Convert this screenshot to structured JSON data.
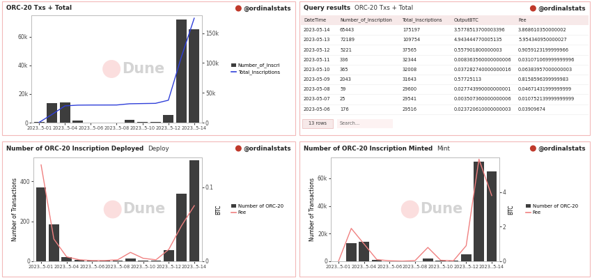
{
  "chart_data": [
    {
      "type": "bar",
      "title": "ORC-20 Txs + Total",
      "author": "@ordinalstats",
      "watermark": "Dune",
      "categories": [
        "2023..5-01",
        null,
        "2023..5-04",
        null,
        "2023..5-06",
        null,
        "2023..5-08",
        null,
        "2023..5-10",
        null,
        "2023..5-12",
        null,
        "2023..5-14"
      ],
      "series": [
        {
          "name": "Number_of_Inscri",
          "type": "bar",
          "color": "#3d3d3d",
          "values": [
            400,
            13400,
            14300,
            1240,
            176,
            25,
            59,
            2043,
            365,
            336,
            5221,
            72189,
            65443
          ]
        },
        {
          "name": "Total_Inscriptions",
          "type": "line",
          "color": "#2f3fd9",
          "axis": "y2",
          "values": [
            400,
            13800,
            28100,
            29340,
            29516,
            29541,
            29600,
            31643,
            32008,
            32344,
            37565,
            109754,
            175197
          ]
        }
      ],
      "ylim": [
        0,
        75000
      ],
      "yticks": [
        0,
        {
          "value": 20000,
          "label": "20k"
        },
        {
          "value": 40000,
          "label": "40k"
        },
        {
          "value": 60000,
          "label": "60k"
        }
      ],
      "y2lim": [
        0,
        180000
      ],
      "y2ticks": [
        0,
        {
          "value": 50000,
          "label": "50k"
        },
        {
          "value": 100000,
          "label": "100k"
        },
        {
          "value": 150000,
          "label": "150k"
        }
      ],
      "legend": "right"
    },
    {
      "type": "bar",
      "title": "Number of ORC-20 Inscription Deployed",
      "subtitle": "Deploy",
      "author": "@ordinalstats",
      "watermark": "Dune",
      "categories": [
        "2023..5-01",
        null,
        "2023..5-04",
        null,
        "2023..5-06",
        null,
        "2023..5-08",
        null,
        "2023..5-10",
        null,
        "2023..5-12",
        null,
        "2023..5-14"
      ],
      "series": [
        {
          "name": "Number of ORC-20",
          "type": "bar",
          "color": "#3d3d3d",
          "values": [
            370,
            185,
            20,
            8,
            3,
            2,
            3,
            15,
            5,
            3,
            55,
            340,
            505
          ]
        },
        {
          "name": "Fee",
          "type": "line",
          "color": "#f08080",
          "axis": "y2",
          "values": [
            0.13,
            0.03,
            0.006,
            0.002,
            0.001,
            0.001,
            0.002,
            0.012,
            0.004,
            0.002,
            0.016,
            0.048,
            0.075
          ]
        }
      ],
      "y_label": "Number of Transactions",
      "y2_label": "BTC",
      "ylim": [
        0,
        520
      ],
      "yticks": [
        0,
        200,
        400
      ],
      "y2lim": [
        0,
        0.14
      ],
      "y2ticks": [
        0,
        0.1
      ],
      "legend": "right"
    },
    {
      "type": "bar",
      "title": "Number of ORC-20 Inscription Minted",
      "subtitle": "Mint",
      "author": "@ordinalstats",
      "watermark": "Dune",
      "categories": [
        "2023..5-01",
        null,
        "2023..5-04",
        null,
        "2023..5-06",
        null,
        "2023..5-08",
        null,
        "2023..5-10",
        null,
        "2023..5-12",
        null,
        "2023..5-14"
      ],
      "series": [
        {
          "name": "Number of ORC-20",
          "type": "bar",
          "color": "#3d3d3d",
          "values": [
            30,
            13215,
            14280,
            1232,
            173,
            23,
            56,
            2028,
            360,
            333,
            5166,
            71849,
            64938
          ]
        },
        {
          "name": "Fee",
          "type": "line",
          "color": "#f08080",
          "axis": "y2",
          "values": [
            0.0,
            1.9,
            1.0,
            0.1,
            0.03,
            0.01,
            0.04,
            0.8,
            0.06,
            0.03,
            0.9,
            5.9,
            3.8
          ]
        }
      ],
      "y_label": "Number of Transactions",
      "y2_label": "BTC",
      "ylim": [
        0,
        75000
      ],
      "yticks": [
        0,
        {
          "value": 20000,
          "label": "20k"
        },
        {
          "value": 40000,
          "label": "40k"
        },
        {
          "value": 60000,
          "label": "60k"
        }
      ],
      "y2lim": [
        0,
        6
      ],
      "y2ticks": [
        0,
        2,
        4
      ],
      "legend": "right"
    }
  ],
  "table": {
    "title": "Query results",
    "subtitle": "ORC-20 Txs + Total",
    "author": "@ordinalstats",
    "columns": [
      "DateTime",
      "Number_of_Inscription",
      "Total_Inscriptions",
      "OutputBTC",
      "Fee"
    ],
    "rows": [
      [
        "2023-05-14",
        "65443",
        "175197",
        "3.5778513700003396",
        "3.868610350000002"
      ],
      [
        "2023-05-13",
        "72189",
        "109754",
        "4.943444770005135",
        "5.954340950000027"
      ],
      [
        "2023-05-12",
        "5221",
        "37565",
        "0.557901800000003",
        "0.9059123199999966"
      ],
      [
        "2023-05-11",
        "336",
        "32344",
        "0.008363560000000006",
        "0.031071069999999996"
      ],
      [
        "2023-05-10",
        "365",
        "32008",
        "0.037282740000000016",
        "0.06383957000000003"
      ],
      [
        "2023-05-09",
        "2043",
        "31643",
        "0.57725113",
        "0.8158596399999983"
      ],
      [
        "2023-05-08",
        "59",
        "29600",
        "0.027743990000000001",
        "0.04671431999999999"
      ],
      [
        "2023-05-07",
        "25",
        "29541",
        "0.003507360000000006",
        "0.010752139999999999"
      ],
      [
        "2023-05-06",
        "176",
        "29516",
        "0.023720610000000003",
        "0.03909674"
      ]
    ],
    "footer": "13 rows",
    "search": "Search..."
  }
}
